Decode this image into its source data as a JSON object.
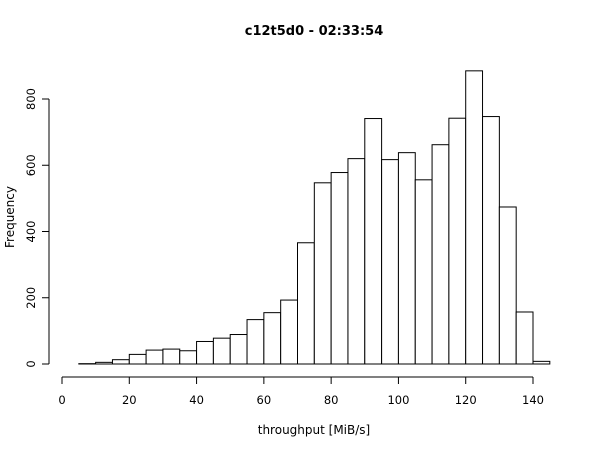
{
  "chart_data": {
    "type": "bar",
    "title": "c12t5d0 - 02:33:54",
    "xlabel": "throughput [MiB/s]",
    "ylabel": "Frequency",
    "bin_width": 5,
    "bin_starts": [
      5,
      10,
      15,
      20,
      25,
      30,
      35,
      40,
      45,
      50,
      55,
      60,
      65,
      70,
      75,
      80,
      85,
      90,
      95,
      100,
      105,
      110,
      115,
      120,
      125,
      130,
      135,
      140
    ],
    "values": [
      1,
      5,
      13,
      29,
      42,
      45,
      40,
      68,
      78,
      89,
      134,
      155,
      193,
      366,
      547,
      578,
      620,
      741,
      617,
      638,
      556,
      662,
      742,
      885,
      747,
      474,
      157,
      8
    ],
    "xlim": [
      0,
      145
    ],
    "ylim": [
      0,
      900
    ],
    "x_ticks": [
      0,
      20,
      40,
      60,
      80,
      100,
      120,
      140
    ],
    "x_tick_labels": [
      "0",
      "20",
      "40",
      "60",
      "80",
      "100",
      "120",
      "140"
    ],
    "y_ticks": [
      0,
      200,
      400,
      600,
      800
    ],
    "y_tick_labels": [
      "0",
      "200",
      "400",
      "600",
      "800"
    ],
    "grid": false,
    "legend": "none",
    "colors": {
      "bar_fill": "#ffffff",
      "bar_stroke": "#000000",
      "axis": "#000000",
      "background": "#ffffff"
    }
  }
}
